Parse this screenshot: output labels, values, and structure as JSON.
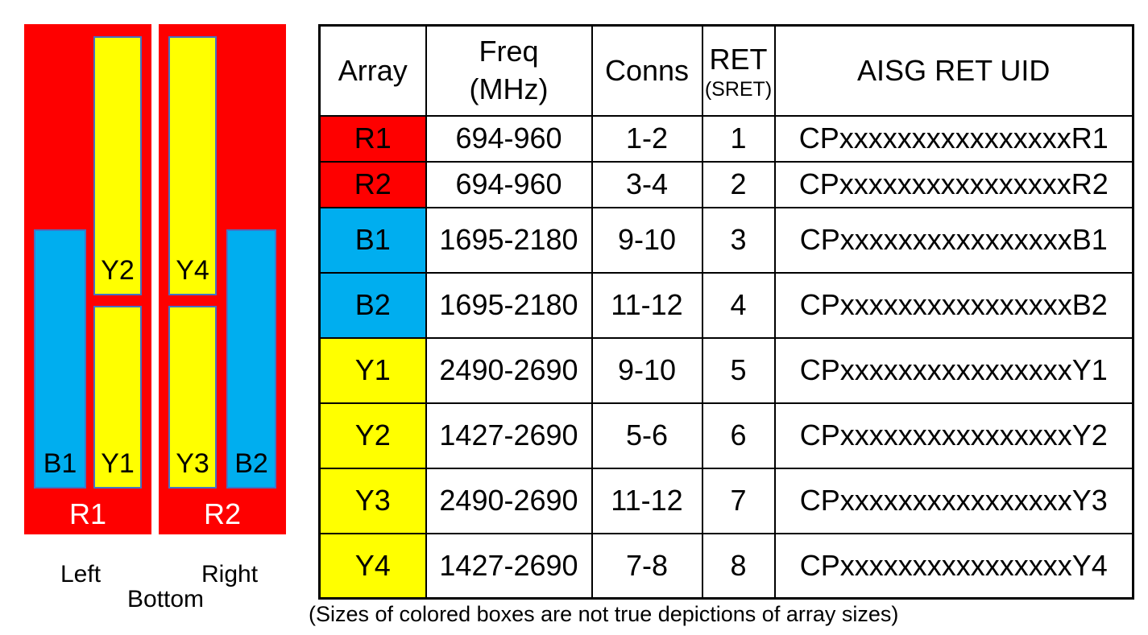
{
  "colors": {
    "red": "#FE0000",
    "blue": "#00AEEF",
    "yellow": "#FFFF00",
    "box_border": "#4472C4"
  },
  "diagram": {
    "panels": [
      {
        "label": "R1",
        "color": "#FE0000",
        "boxes": [
          {
            "label": "B1",
            "color": "#00AEEF"
          },
          {
            "label": "Y2",
            "color": "#FFFF00"
          },
          {
            "label": "Y1",
            "color": "#FFFF00"
          }
        ]
      },
      {
        "label": "R2",
        "color": "#FE0000",
        "boxes": [
          {
            "label": "Y4",
            "color": "#FFFF00"
          },
          {
            "label": "Y3",
            "color": "#FFFF00"
          },
          {
            "label": "B2",
            "color": "#00AEEF"
          }
        ]
      }
    ],
    "captions": {
      "left": "Left",
      "right": "Right",
      "bottom": "Bottom"
    }
  },
  "table": {
    "headers": {
      "array": "Array",
      "freq_line1": "Freq",
      "freq_line2": "(MHz)",
      "conns": "Conns",
      "ret_line1": "RET",
      "ret_line2": "(SRET)",
      "uid": "AISG RET UID"
    },
    "rows": [
      {
        "array": "R1",
        "color": "#FE0000",
        "freq": "694-960",
        "conns": "1-2",
        "ret": "1",
        "uid": "CPxxxxxxxxxxxxxxxxR1"
      },
      {
        "array": "R2",
        "color": "#FE0000",
        "freq": "694-960",
        "conns": "3-4",
        "ret": "2",
        "uid": "CPxxxxxxxxxxxxxxxxR2"
      },
      {
        "array": "B1",
        "color": "#00AEEF",
        "freq": "1695-2180",
        "conns": "9-10",
        "ret": "3",
        "uid": "CPxxxxxxxxxxxxxxxxB1"
      },
      {
        "array": "B2",
        "color": "#00AEEF",
        "freq": "1695-2180",
        "conns": "11-12",
        "ret": "4",
        "uid": "CPxxxxxxxxxxxxxxxxB2"
      },
      {
        "array": "Y1",
        "color": "#FFFF00",
        "freq": "2490-2690",
        "conns": "9-10",
        "ret": "5",
        "uid": "CPxxxxxxxxxxxxxxxxY1"
      },
      {
        "array": "Y2",
        "color": "#FFFF00",
        "freq": "1427-2690",
        "conns": "5-6",
        "ret": "6",
        "uid": "CPxxxxxxxxxxxxxxxxY2"
      },
      {
        "array": "Y3",
        "color": "#FFFF00",
        "freq": "2490-2690",
        "conns": "11-12",
        "ret": "7",
        "uid": "CPxxxxxxxxxxxxxxxxY3"
      },
      {
        "array": "Y4",
        "color": "#FFFF00",
        "freq": "1427-2690",
        "conns": "7-8",
        "ret": "8",
        "uid": "CPxxxxxxxxxxxxxxxxY4"
      }
    ]
  },
  "footnote": "(Sizes of colored boxes are not true depictions of array sizes)"
}
